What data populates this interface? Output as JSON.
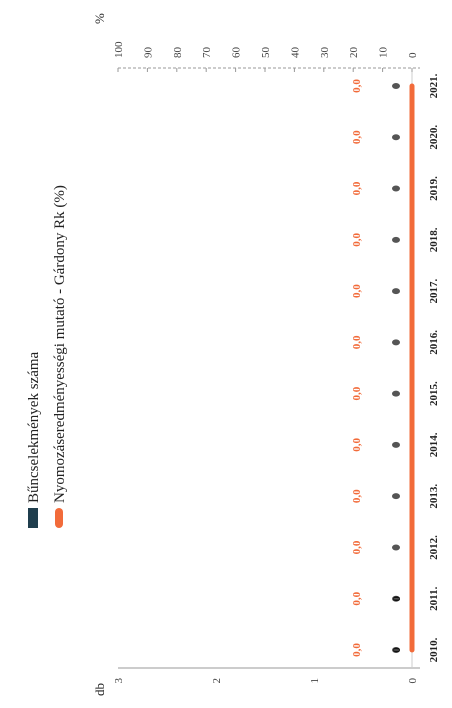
{
  "chart_data": {
    "type": "bar",
    "categories": [
      "2010.",
      "2011.",
      "2012.",
      "2013.",
      "2014.",
      "2015.",
      "2016.",
      "2017.",
      "2018.",
      "2019.",
      "2020.",
      "2021."
    ],
    "series": [
      {
        "name": "Bűncselekmények száma",
        "kind": "bar",
        "axis": "db",
        "color": "#1f3e4d",
        "values": [
          0,
          0,
          0,
          0,
          0,
          0,
          0,
          0,
          0,
          0,
          0,
          0
        ],
        "data_labels": [
          "0",
          "0",
          "",
          "",
          "",
          "",
          "",
          "",
          "",
          "",
          "",
          ""
        ]
      },
      {
        "name": "Nyomozáseredményességi mutató - Gárdony Rk (%)",
        "kind": "line",
        "axis": "%",
        "color": "#f26b3a",
        "values": [
          0,
          0,
          0,
          0,
          0,
          0,
          0,
          0,
          0,
          0,
          0,
          0
        ],
        "data_labels": [
          "0,0",
          "0,0",
          "0,0",
          "0,0",
          "0,0",
          "0,0",
          "0,0",
          "0,0",
          "0,0",
          "0,0",
          "0,0",
          "0,0"
        ]
      }
    ],
    "left_axis": {
      "unit": "db",
      "ticks": [
        "0",
        "1",
        "2",
        "3"
      ],
      "range": [
        0,
        3
      ]
    },
    "right_axis": {
      "unit": "%",
      "ticks": [
        "0",
        "10",
        "20",
        "30",
        "40",
        "50",
        "60",
        "70",
        "80",
        "90",
        "100"
      ],
      "range": [
        0,
        100
      ]
    },
    "legend_placement": "top",
    "grid": false
  }
}
